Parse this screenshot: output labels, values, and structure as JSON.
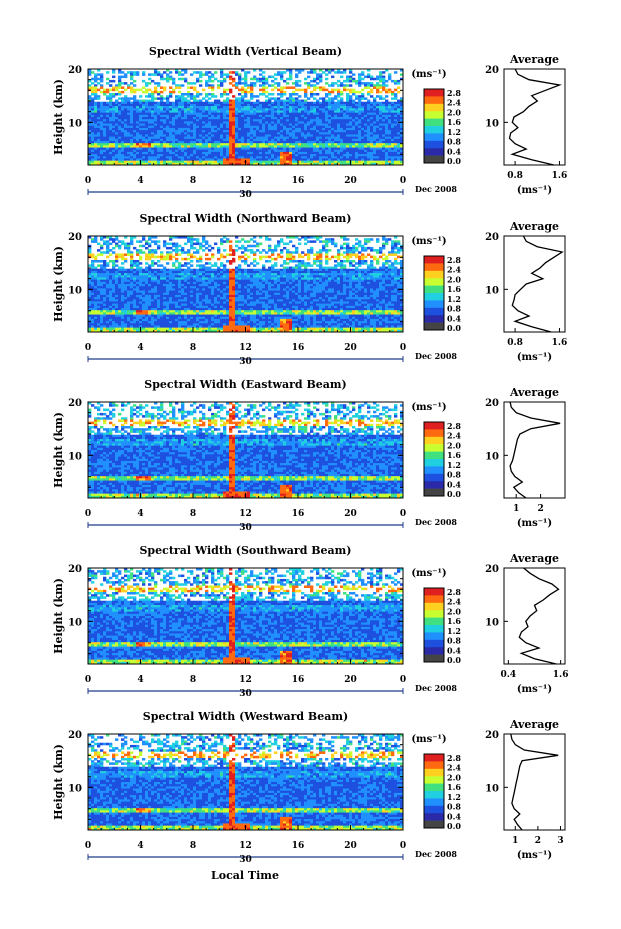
{
  "figure": {
    "date_label": "Dec 2008",
    "day_label": "30",
    "x_axis_label": "Local Time",
    "y_axis_label": "Height (km)",
    "unit_label": "(ms⁻¹)",
    "average_title": "Average",
    "average_xlabel": "(ms⁻¹)"
  },
  "colorbar": {
    "ticks": [
      "2.8",
      "2.4",
      "2.0",
      "1.6",
      "1.2",
      "0.8",
      "0.4",
      "0.0"
    ],
    "colors": [
      "#e02020",
      "#ff6a10",
      "#ffd020",
      "#c8ff30",
      "#40e080",
      "#20d0e0",
      "#2090ff",
      "#1e50e0",
      "#2a2aa8",
      "#444444"
    ]
  },
  "chart_data": [
    {
      "type": "heatmap",
      "title": "Spectral Width (Vertical Beam)",
      "xlabel": "",
      "ylabel": "Height (km)",
      "x_ticks": [
        "0",
        "4",
        "8",
        "12",
        "16",
        "20",
        "0"
      ],
      "xlim": [
        0,
        24
      ],
      "y_ticks": [
        "20",
        "10"
      ],
      "ylim": [
        2,
        20
      ],
      "colorbar_range": [
        0,
        3.0
      ],
      "average": {
        "xlabel": "(ms⁻¹)",
        "x_ticks": [
          "0.8",
          "1.6"
        ],
        "xlim": [
          0.6,
          1.7
        ],
        "heights": [
          2,
          3,
          4,
          5,
          6,
          7,
          8,
          9,
          10,
          11,
          12,
          13,
          14,
          15,
          16,
          17,
          18,
          19,
          20
        ],
        "values": [
          1.5,
          1.1,
          0.75,
          1.0,
          0.8,
          0.7,
          0.72,
          0.85,
          0.75,
          0.78,
          0.95,
          1.05,
          1.2,
          1.1,
          1.35,
          1.6,
          1.05,
          0.85,
          0.8
        ]
      }
    },
    {
      "type": "heatmap",
      "title": "Spectral Width (Northward Beam)",
      "xlabel": "",
      "ylabel": "Height (km)",
      "x_ticks": [
        "0",
        "4",
        "8",
        "12",
        "16",
        "20",
        "0"
      ],
      "xlim": [
        0,
        24
      ],
      "y_ticks": [
        "20",
        "10"
      ],
      "ylim": [
        2,
        20
      ],
      "colorbar_range": [
        0,
        3.0
      ],
      "average": {
        "xlabel": "(ms⁻¹)",
        "x_ticks": [
          "0.8",
          "1.6"
        ],
        "xlim": [
          0.6,
          1.7
        ],
        "heights": [
          2,
          3,
          4,
          5,
          6,
          7,
          8,
          9,
          10,
          11,
          12,
          13,
          14,
          15,
          16,
          17,
          18,
          19,
          20
        ],
        "values": [
          1.45,
          1.1,
          0.8,
          1.05,
          0.85,
          0.75,
          0.78,
          0.8,
          0.9,
          1.0,
          1.3,
          1.1,
          1.25,
          1.35,
          1.5,
          1.65,
          1.2,
          1.0,
          0.95
        ]
      }
    },
    {
      "type": "heatmap",
      "title": "Spectral Width (Eastward Beam)",
      "xlabel": "",
      "ylabel": "Height (km)",
      "x_ticks": [
        "0",
        "4",
        "8",
        "12",
        "16",
        "20",
        "0"
      ],
      "xlim": [
        0,
        24
      ],
      "y_ticks": [
        "20",
        "10"
      ],
      "ylim": [
        2,
        20
      ],
      "colorbar_range": [
        0,
        3.0
      ],
      "average": {
        "xlabel": "(ms⁻¹)",
        "x_ticks": [
          "1",
          "2"
        ],
        "xlim": [
          0.5,
          3.0
        ],
        "heights": [
          2,
          3,
          4,
          5,
          6,
          7,
          8,
          9,
          10,
          11,
          12,
          13,
          14,
          15,
          16,
          17,
          18,
          19,
          20
        ],
        "values": [
          1.4,
          1.1,
          0.9,
          1.25,
          0.95,
          0.8,
          0.75,
          0.85,
          0.9,
          0.95,
          1.0,
          1.05,
          1.15,
          1.6,
          2.8,
          1.6,
          1.0,
          0.8,
          0.75
        ]
      }
    },
    {
      "type": "heatmap",
      "title": "Spectral Width (Southward Beam)",
      "xlabel": "",
      "ylabel": "Height (km)",
      "x_ticks": [
        "0",
        "4",
        "8",
        "12",
        "16",
        "20",
        "0"
      ],
      "xlim": [
        0,
        24
      ],
      "y_ticks": [
        "20",
        "10"
      ],
      "ylim": [
        2,
        20
      ],
      "colorbar_range": [
        0,
        3.0
      ],
      "average": {
        "xlabel": "(ms⁻¹)",
        "x_ticks": [
          "0.4",
          "1.6"
        ],
        "xlim": [
          0.3,
          1.7
        ],
        "heights": [
          2,
          3,
          4,
          5,
          6,
          7,
          8,
          9,
          10,
          11,
          12,
          13,
          14,
          15,
          16,
          17,
          18,
          19,
          20
        ],
        "values": [
          1.5,
          1.0,
          0.7,
          1.1,
          0.8,
          0.65,
          0.7,
          0.85,
          0.8,
          0.9,
          1.05,
          1.0,
          1.2,
          1.35,
          1.55,
          1.4,
          1.1,
          0.9,
          0.75
        ]
      }
    },
    {
      "type": "heatmap",
      "title": "Spectral Width (Westward Beam)",
      "xlabel": "",
      "ylabel": "Height (km)",
      "x_ticks": [
        "0",
        "4",
        "8",
        "12",
        "16",
        "20",
        "0"
      ],
      "xlim": [
        0,
        24
      ],
      "y_ticks": [
        "20",
        "10"
      ],
      "ylim": [
        2,
        20
      ],
      "colorbar_range": [
        0,
        3.0
      ],
      "average": {
        "xlabel": "(ms⁻¹)",
        "x_ticks": [
          "1",
          "2",
          "3"
        ],
        "xlim": [
          0.5,
          3.2
        ],
        "heights": [
          2,
          3,
          4,
          5,
          6,
          7,
          8,
          9,
          10,
          11,
          12,
          13,
          14,
          15,
          16,
          17,
          18,
          19,
          20
        ],
        "values": [
          1.3,
          1.1,
          0.95,
          1.2,
          0.95,
          0.85,
          0.9,
          0.95,
          1.0,
          1.05,
          1.1,
          1.15,
          1.2,
          1.3,
          2.9,
          1.4,
          1.0,
          0.85,
          0.8
        ]
      }
    }
  ]
}
